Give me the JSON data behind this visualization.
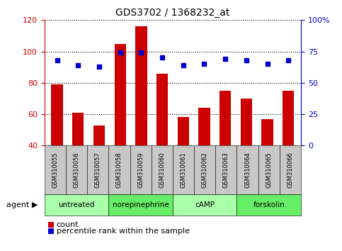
{
  "title": "GDS3702 / 1368232_at",
  "samples": [
    "GSM310055",
    "GSM310056",
    "GSM310057",
    "GSM310058",
    "GSM310059",
    "GSM310060",
    "GSM310061",
    "GSM310062",
    "GSM310063",
    "GSM310064",
    "GSM310065",
    "GSM310066"
  ],
  "counts": [
    79,
    61,
    53,
    105,
    116,
    86,
    58,
    64,
    75,
    70,
    57,
    75
  ],
  "percentiles": [
    68,
    64,
    63,
    74,
    74,
    70,
    64,
    65,
    69,
    68,
    65,
    68
  ],
  "groups": [
    {
      "label": "untreated",
      "start": 0,
      "end": 3,
      "color": "#aaffaa"
    },
    {
      "label": "norepinephrine",
      "start": 3,
      "end": 6,
      "color": "#66ee66"
    },
    {
      "label": "cAMP",
      "start": 6,
      "end": 9,
      "color": "#aaffaa"
    },
    {
      "label": "forskolin",
      "start": 9,
      "end": 12,
      "color": "#66ee66"
    }
  ],
  "ylim_left": [
    40,
    120
  ],
  "ylim_right": [
    0,
    100
  ],
  "yticks_left": [
    40,
    60,
    80,
    100,
    120
  ],
  "yticks_right": [
    0,
    25,
    50,
    75,
    100
  ],
  "ytick_labels_right": [
    "0",
    "25",
    "50",
    "75",
    "100%"
  ],
  "bar_color": "#cc0000",
  "dot_color": "#0000cc",
  "grid_color": "#000000",
  "bg_color": "#ffffff",
  "tick_label_color_left": "#cc0000",
  "tick_label_color_right": "#0000cc",
  "agent_label": "agent",
  "legend_count_label": "count",
  "legend_percentile_label": "percentile rank within the sample",
  "gray_box_color": "#c8c8c8"
}
